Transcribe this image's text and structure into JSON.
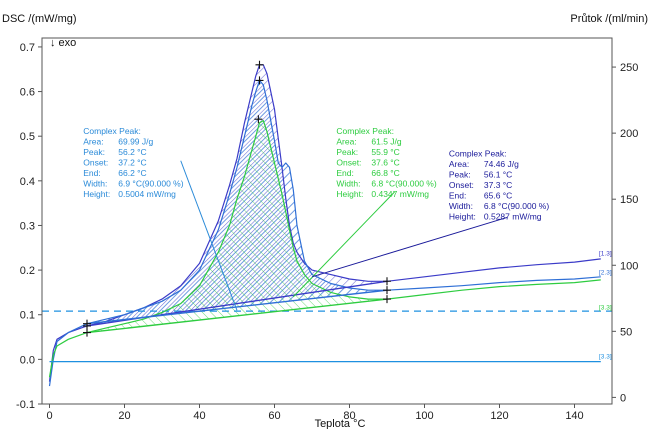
{
  "chart_data": {
    "type": "line",
    "ylabel": "DSC /(mW/mg)",
    "ylabel2": "Průtok /(ml/min)",
    "xlabel": "Teplota °C",
    "exo_label": "↓ exo",
    "xlim": [
      -2,
      150
    ],
    "ylim": [
      -0.1,
      0.72
    ],
    "y2lim": [
      -5,
      272
    ],
    "x_ticks": [
      0,
      20,
      40,
      60,
      80,
      100,
      120,
      140
    ],
    "y_ticks": [
      -0.1,
      0.0,
      0.1,
      0.2,
      0.3,
      0.4,
      0.5,
      0.6,
      0.7
    ],
    "y_tick_labels": [
      "-0.1",
      "0.0",
      "0.1",
      "0.2",
      "0.3",
      "0.4",
      "0.5",
      "0.6",
      "0.7"
    ],
    "y2_ticks": [
      0,
      50,
      100,
      150,
      200,
      250
    ],
    "colors": {
      "curve1": "#3b3bc8",
      "curve2": "#2f6fd6",
      "curve3": "#2ecc40",
      "flow": "#1e90e0",
      "ann_blue": "#2a8ad8",
      "ann_green": "#2ecc40",
      "ann_navy": "#1a1a9a"
    },
    "series": [
      {
        "line_color": "curve1",
        "points": [
          [
            0,
            -0.05
          ],
          [
            1,
            0.02
          ],
          [
            2,
            0.045
          ],
          [
            5,
            0.06
          ],
          [
            10,
            0.075
          ],
          [
            15,
            0.085
          ],
          [
            20,
            0.1
          ],
          [
            25,
            0.115
          ],
          [
            30,
            0.135
          ],
          [
            35,
            0.165
          ],
          [
            40,
            0.215
          ],
          [
            45,
            0.31
          ],
          [
            48,
            0.39
          ],
          [
            50,
            0.45
          ],
          [
            52,
            0.53
          ],
          [
            54,
            0.6
          ],
          [
            55,
            0.635
          ],
          [
            56,
            0.66
          ],
          [
            57,
            0.66
          ],
          [
            58,
            0.64
          ],
          [
            60,
            0.56
          ],
          [
            62,
            0.43
          ],
          [
            63,
            0.36
          ],
          [
            64,
            0.3
          ],
          [
            65,
            0.26
          ],
          [
            66,
            0.24
          ],
          [
            68,
            0.215
          ],
          [
            70,
            0.2
          ],
          [
            75,
            0.19
          ],
          [
            80,
            0.18
          ],
          [
            85,
            0.175
          ],
          [
            90,
            0.175
          ],
          [
            100,
            0.185
          ],
          [
            110,
            0.195
          ],
          [
            120,
            0.205
          ],
          [
            130,
            0.212
          ],
          [
            140,
            0.218
          ],
          [
            147,
            0.225
          ]
        ]
      },
      {
        "line_color": "curve2",
        "points": [
          [
            0,
            -0.06
          ],
          [
            1,
            0.0
          ],
          [
            2,
            0.04
          ],
          [
            5,
            0.06
          ],
          [
            10,
            0.08
          ],
          [
            15,
            0.09
          ],
          [
            20,
            0.1
          ],
          [
            25,
            0.115
          ],
          [
            30,
            0.13
          ],
          [
            35,
            0.155
          ],
          [
            40,
            0.2
          ],
          [
            45,
            0.29
          ],
          [
            48,
            0.37
          ],
          [
            50,
            0.43
          ],
          [
            52,
            0.5
          ],
          [
            54,
            0.57
          ],
          [
            55,
            0.6
          ],
          [
            56,
            0.625
          ],
          [
            57,
            0.615
          ],
          [
            58,
            0.58
          ],
          [
            60,
            0.49
          ],
          [
            61,
            0.44
          ],
          [
            62,
            0.43
          ],
          [
            63,
            0.44
          ],
          [
            64,
            0.43
          ],
          [
            65,
            0.38
          ],
          [
            66,
            0.3
          ],
          [
            68,
            0.22
          ],
          [
            70,
            0.19
          ],
          [
            75,
            0.17
          ],
          [
            80,
            0.16
          ],
          [
            85,
            0.155
          ],
          [
            90,
            0.155
          ],
          [
            100,
            0.16
          ],
          [
            110,
            0.165
          ],
          [
            120,
            0.172
          ],
          [
            130,
            0.177
          ],
          [
            140,
            0.18
          ],
          [
            147,
            0.185
          ]
        ]
      },
      {
        "line_color": "curve3",
        "points": [
          [
            0,
            -0.04
          ],
          [
            1,
            0.01
          ],
          [
            2,
            0.03
          ],
          [
            5,
            0.045
          ],
          [
            10,
            0.06
          ],
          [
            15,
            0.07
          ],
          [
            20,
            0.08
          ],
          [
            25,
            0.09
          ],
          [
            30,
            0.105
          ],
          [
            35,
            0.125
          ],
          [
            40,
            0.165
          ],
          [
            45,
            0.24
          ],
          [
            48,
            0.3
          ],
          [
            50,
            0.36
          ],
          [
            52,
            0.41
          ],
          [
            54,
            0.47
          ],
          [
            55,
            0.5
          ],
          [
            56,
            0.53
          ],
          [
            57,
            0.535
          ],
          [
            58,
            0.51
          ],
          [
            60,
            0.44
          ],
          [
            62,
            0.37
          ],
          [
            63,
            0.33
          ],
          [
            64,
            0.29
          ],
          [
            65,
            0.25
          ],
          [
            66,
            0.22
          ],
          [
            68,
            0.19
          ],
          [
            70,
            0.17
          ],
          [
            75,
            0.15
          ],
          [
            80,
            0.14
          ],
          [
            85,
            0.135
          ],
          [
            90,
            0.135
          ],
          [
            100,
            0.145
          ],
          [
            110,
            0.155
          ],
          [
            120,
            0.163
          ],
          [
            130,
            0.168
          ],
          [
            140,
            0.172
          ],
          [
            147,
            0.178
          ]
        ]
      },
      {
        "line_color": "flow",
        "points": [
          [
            0,
            -0.005
          ],
          [
            147,
            -0.005
          ]
        ]
      }
    ],
    "reference_lines": [
      {
        "y": 0.108,
        "dashed": true,
        "line_color": "flow"
      }
    ],
    "baselines": [
      {
        "line_color": "curve1",
        "points": [
          [
            10,
            0.075
          ],
          [
            90,
            0.175
          ]
        ]
      },
      {
        "line_color": "curve2",
        "points": [
          [
            10,
            0.08
          ],
          [
            90,
            0.155
          ]
        ]
      },
      {
        "line_color": "curve3",
        "points": [
          [
            10,
            0.06
          ],
          [
            90,
            0.135
          ]
        ]
      }
    ],
    "markers": [
      {
        "x": 10,
        "y": 0.075
      },
      {
        "x": 10,
        "y": 0.06
      },
      {
        "x": 10,
        "y": 0.08
      },
      {
        "x": 90,
        "y": 0.175
      },
      {
        "x": 90,
        "y": 0.155
      },
      {
        "x": 90,
        "y": 0.135
      },
      {
        "x": 56,
        "y": 0.66
      },
      {
        "x": 56,
        "y": 0.625
      },
      {
        "x": 55.7,
        "y": 0.538
      }
    ],
    "curve_tags": [
      {
        "text": "[1.3]",
        "y": 0.233,
        "color": "curve1"
      },
      {
        "text": "[2.3]",
        "y": 0.19,
        "color": "curve2"
      },
      {
        "text": "[3.3]",
        "y": 0.112,
        "color": "curve3"
      },
      {
        "text": "[3.3]",
        "y": 0.002,
        "color": "flow"
      }
    ],
    "annotations": [
      {
        "color": "ann_blue",
        "title": "Complex Peak:",
        "anchor": [
          9,
          0.505
        ],
        "leader": [
          [
            35,
            0.445
          ],
          [
            50,
            0.11
          ]
        ],
        "rows": [
          {
            "label": "Area:",
            "value": "69.99 J/g"
          },
          {
            "label": "Peak:",
            "value": "56.2 °C"
          },
          {
            "label": "Onset:",
            "value": "37.2 °C"
          },
          {
            "label": "End:",
            "value": "66.2 °C"
          },
          {
            "label": "Width:",
            "value": "6.9 °C(90.000 %)"
          },
          {
            "label": "Height:",
            "value": "0.5004 mW/mg"
          }
        ]
      },
      {
        "color": "ann_green",
        "title": "Complex Peak:",
        "anchor": [
          76.5,
          0.505
        ],
        "leader": [
          [
            92,
            0.375
          ],
          [
            65,
            0.14
          ]
        ],
        "rows": [
          {
            "label": "Area:",
            "value": "61.5 J/g"
          },
          {
            "label": "Peak:",
            "value": "55.9 °C"
          },
          {
            "label": "Onset:",
            "value": "37.6 °C"
          },
          {
            "label": "End:",
            "value": "66.8 °C"
          },
          {
            "label": "Width:",
            "value": "6.8 °C(90.000 %)"
          },
          {
            "label": "Height:",
            "value": "0.4347 mW/mg"
          }
        ]
      },
      {
        "color": "ann_navy",
        "title": "Complex Peak:",
        "anchor": [
          106.5,
          0.455
        ],
        "leader": [
          [
            122,
            0.318
          ],
          [
            70,
            0.185
          ]
        ],
        "rows": [
          {
            "label": "Area:",
            "value": "74.46 J/g"
          },
          {
            "label": "Peak:",
            "value": "56.1 °C"
          },
          {
            "label": "Onset:",
            "value": "37.3 °C"
          },
          {
            "label": "End:",
            "value": "65.6 °C"
          },
          {
            "label": "Width:",
            "value": "6.8 °C(90.000 %)"
          },
          {
            "label": "Height:",
            "value": "0.5287 mW/mg"
          }
        ]
      }
    ]
  }
}
